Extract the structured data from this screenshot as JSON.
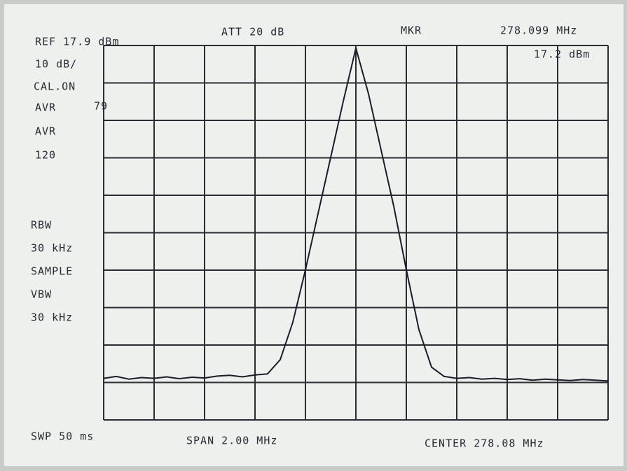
{
  "chart_data": {
    "type": "line",
    "annotations": {
      "ref": "REF  17.9 dBm",
      "att": "ATT 20 dB",
      "mkr": "MKR",
      "mkr_freq": "278.099 MHz",
      "mkr_level": "17.2 dBm",
      "scale": "10 dB/",
      "cal": "CAL.ON",
      "avr1": "AVR",
      "avr_count": "79",
      "avr2": "AVR",
      "avr_total": "120",
      "rbw": "RBW",
      "rbw_value": "30 kHz",
      "detector": "SAMPLE",
      "vbw": "VBW",
      "vbw_value": "30 kHz",
      "sweep": "SWP 50 ms",
      "span": "SPAN 2.00 MHz",
      "center": "CENTER 278.08 MHz"
    },
    "x": [
      277.08,
      277.13,
      277.18,
      277.23,
      277.28,
      277.33,
      277.38,
      277.43,
      277.48,
      277.53,
      277.58,
      277.63,
      277.68,
      277.73,
      277.78,
      277.83,
      277.88,
      277.93,
      277.98,
      278.03,
      278.08,
      278.13,
      278.18,
      278.23,
      278.28,
      278.33,
      278.38,
      278.43,
      278.48,
      278.53,
      278.58,
      278.63,
      278.68,
      278.73,
      278.78,
      278.83,
      278.88,
      278.93,
      278.98,
      279.03,
      279.08
    ],
    "series": [
      {
        "name": "trace",
        "color": "#1c1c28",
        "values": [
          -71,
          -70.5,
          -71.2,
          -70.8,
          -71,
          -70.6,
          -71.1,
          -70.7,
          -70.9,
          -70.4,
          -70.2,
          -70.6,
          -70.1,
          -69.8,
          -66,
          -56,
          -42,
          -27,
          -12,
          3,
          17.2,
          5,
          -10,
          -25,
          -42,
          -58,
          -68,
          -70.5,
          -71,
          -70.8,
          -71.2,
          -71,
          -71.3,
          -71.1,
          -71.5,
          -71.2,
          -71.4,
          -71.6,
          -71.3,
          -71.5,
          -71.7
        ]
      }
    ],
    "xlim": [
      277.08,
      279.08
    ],
    "xticks": [
      277.08,
      277.28,
      277.48,
      277.68,
      277.88,
      278.08,
      278.28,
      278.48,
      278.68,
      278.88,
      279.08
    ],
    "ylim": [
      -82.1,
      17.9
    ],
    "yticks": [
      17.9,
      7.9,
      -2.1,
      -12.1,
      -22.1,
      -32.1,
      -42.1,
      -52.1,
      -62.1,
      -72.1,
      -82.1
    ],
    "grid": true
  }
}
